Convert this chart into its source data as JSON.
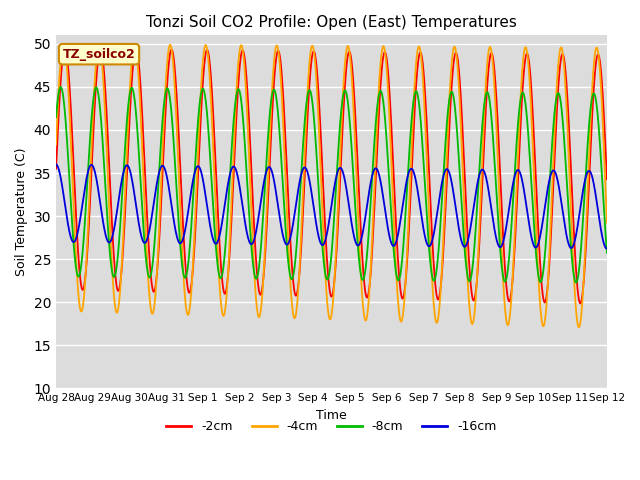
{
  "title": "Tonzi Soil CO2 Profile: Open (East) Temperatures",
  "ylabel": "Soil Temperature (C)",
  "xlabel": "Time",
  "ylim": [
    10,
    51
  ],
  "yticks": [
    10,
    15,
    20,
    25,
    30,
    35,
    40,
    45,
    50
  ],
  "background_color": "#dcdcdc",
  "legend_label": "TZ_soilco2",
  "series": [
    {
      "label": "-2cm",
      "color": "#ff0000"
    },
    {
      "label": "-4cm",
      "color": "#ffa500"
    },
    {
      "label": "-8cm",
      "color": "#00bb00"
    },
    {
      "label": "-16cm",
      "color": "#0000dd"
    }
  ],
  "n_days": 15.5,
  "x_tick_labels": [
    "Aug 28",
    "Aug 29",
    "Aug 30",
    "Aug 31",
    "Sep 1",
    "Sep 2",
    "Sep 3",
    "Sep 4",
    "Sep 5",
    "Sep 6",
    "Sep 7",
    "Sep 8",
    "Sep 9",
    "Sep 10",
    "Sep 11",
    "Sep 12"
  ],
  "params": {
    "-2cm": {
      "mean": 35.5,
      "amp": 14.0,
      "phase": 0.0,
      "trend_mean": -0.08,
      "trend_amp": 0.5
    },
    "-4cm": {
      "mean": 34.5,
      "amp": 15.5,
      "phase": 0.25,
      "trend_mean": -0.08,
      "trend_amp": 0.8
    },
    "-8cm": {
      "mean": 34.0,
      "amp": 11.0,
      "phase": 0.75,
      "trend_mean": -0.05,
      "trend_amp": 0.0
    },
    "-16cm": {
      "mean": 31.5,
      "amp": 4.5,
      "phase": 1.6,
      "trend_mean": -0.05,
      "trend_amp": 0.0
    }
  }
}
